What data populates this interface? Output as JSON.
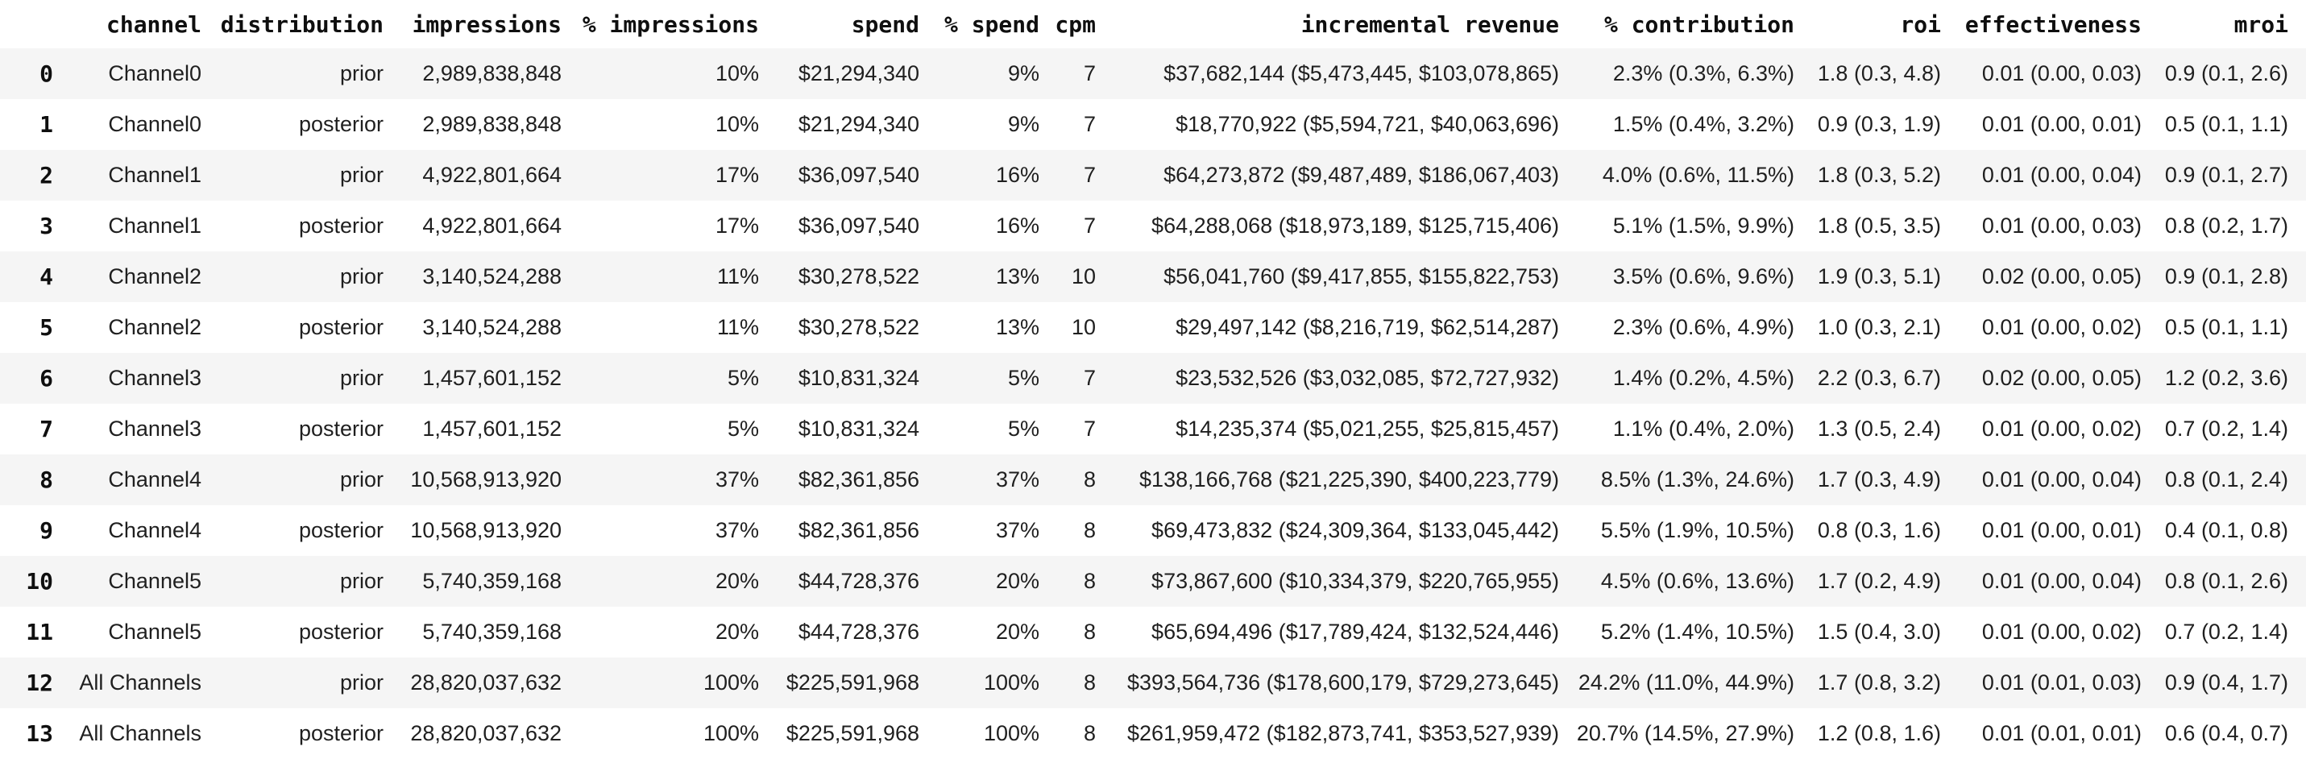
{
  "page": {
    "background": "#ffffff"
  },
  "colors": {
    "stripe": "#f5f5f5",
    "text": "#1f1f1f",
    "header_text": "#0f0f0f"
  },
  "table": {
    "index_header": "",
    "columns": [
      "channel",
      "distribution",
      "impressions",
      "% impressions",
      "spend",
      "% spend",
      "cpm",
      "incremental revenue",
      "% contribution",
      "roi",
      "effectiveness",
      "mroi"
    ],
    "column_keys": [
      "channel",
      "distribution",
      "impressions",
      "pct-impressions",
      "spend",
      "pct-spend",
      "cpm",
      "incremental-revenue",
      "pct-contribution",
      "roi",
      "effectiveness",
      "mroi"
    ],
    "rows": [
      {
        "index": "0",
        "cells": [
          "Channel0",
          "prior",
          "2,989,838,848",
          "10%",
          "$21,294,340",
          "9%",
          "7",
          "$37,682,144 ($5,473,445, $103,078,865)",
          "2.3% (0.3%, 6.3%)",
          "1.8 (0.3, 4.8)",
          "0.01 (0.00, 0.03)",
          "0.9 (0.1, 2.6)"
        ]
      },
      {
        "index": "1",
        "cells": [
          "Channel0",
          "posterior",
          "2,989,838,848",
          "10%",
          "$21,294,340",
          "9%",
          "7",
          "$18,770,922 ($5,594,721, $40,063,696)",
          "1.5% (0.4%, 3.2%)",
          "0.9 (0.3, 1.9)",
          "0.01 (0.00, 0.01)",
          "0.5 (0.1, 1.1)"
        ]
      },
      {
        "index": "2",
        "cells": [
          "Channel1",
          "prior",
          "4,922,801,664",
          "17%",
          "$36,097,540",
          "16%",
          "7",
          "$64,273,872 ($9,487,489, $186,067,403)",
          "4.0% (0.6%, 11.5%)",
          "1.8 (0.3, 5.2)",
          "0.01 (0.00, 0.04)",
          "0.9 (0.1, 2.7)"
        ]
      },
      {
        "index": "3",
        "cells": [
          "Channel1",
          "posterior",
          "4,922,801,664",
          "17%",
          "$36,097,540",
          "16%",
          "7",
          "$64,288,068 ($18,973,189, $125,715,406)",
          "5.1% (1.5%, 9.9%)",
          "1.8 (0.5, 3.5)",
          "0.01 (0.00, 0.03)",
          "0.8 (0.2, 1.7)"
        ]
      },
      {
        "index": "4",
        "cells": [
          "Channel2",
          "prior",
          "3,140,524,288",
          "11%",
          "$30,278,522",
          "13%",
          "10",
          "$56,041,760 ($9,417,855, $155,822,753)",
          "3.5% (0.6%, 9.6%)",
          "1.9 (0.3, 5.1)",
          "0.02 (0.00, 0.05)",
          "0.9 (0.1, 2.8)"
        ]
      },
      {
        "index": "5",
        "cells": [
          "Channel2",
          "posterior",
          "3,140,524,288",
          "11%",
          "$30,278,522",
          "13%",
          "10",
          "$29,497,142 ($8,216,719, $62,514,287)",
          "2.3% (0.6%, 4.9%)",
          "1.0 (0.3, 2.1)",
          "0.01 (0.00, 0.02)",
          "0.5 (0.1, 1.1)"
        ]
      },
      {
        "index": "6",
        "cells": [
          "Channel3",
          "prior",
          "1,457,601,152",
          "5%",
          "$10,831,324",
          "5%",
          "7",
          "$23,532,526 ($3,032,085, $72,727,932)",
          "1.4% (0.2%, 4.5%)",
          "2.2 (0.3, 6.7)",
          "0.02 (0.00, 0.05)",
          "1.2 (0.2, 3.6)"
        ]
      },
      {
        "index": "7",
        "cells": [
          "Channel3",
          "posterior",
          "1,457,601,152",
          "5%",
          "$10,831,324",
          "5%",
          "7",
          "$14,235,374 ($5,021,255, $25,815,457)",
          "1.1% (0.4%, 2.0%)",
          "1.3 (0.5, 2.4)",
          "0.01 (0.00, 0.02)",
          "0.7 (0.2, 1.4)"
        ]
      },
      {
        "index": "8",
        "cells": [
          "Channel4",
          "prior",
          "10,568,913,920",
          "37%",
          "$82,361,856",
          "37%",
          "8",
          "$138,166,768 ($21,225,390, $400,223,779)",
          "8.5% (1.3%, 24.6%)",
          "1.7 (0.3, 4.9)",
          "0.01 (0.00, 0.04)",
          "0.8 (0.1, 2.4)"
        ]
      },
      {
        "index": "9",
        "cells": [
          "Channel4",
          "posterior",
          "10,568,913,920",
          "37%",
          "$82,361,856",
          "37%",
          "8",
          "$69,473,832 ($24,309,364, $133,045,442)",
          "5.5% (1.9%, 10.5%)",
          "0.8 (0.3, 1.6)",
          "0.01 (0.00, 0.01)",
          "0.4 (0.1, 0.8)"
        ]
      },
      {
        "index": "10",
        "cells": [
          "Channel5",
          "prior",
          "5,740,359,168",
          "20%",
          "$44,728,376",
          "20%",
          "8",
          "$73,867,600 ($10,334,379, $220,765,955)",
          "4.5% (0.6%, 13.6%)",
          "1.7 (0.2, 4.9)",
          "0.01 (0.00, 0.04)",
          "0.8 (0.1, 2.6)"
        ]
      },
      {
        "index": "11",
        "cells": [
          "Channel5",
          "posterior",
          "5,740,359,168",
          "20%",
          "$44,728,376",
          "20%",
          "8",
          "$65,694,496 ($17,789,424, $132,524,446)",
          "5.2% (1.4%, 10.5%)",
          "1.5 (0.4, 3.0)",
          "0.01 (0.00, 0.02)",
          "0.7 (0.2, 1.4)"
        ]
      },
      {
        "index": "12",
        "cells": [
          "All Channels",
          "prior",
          "28,820,037,632",
          "100%",
          "$225,591,968",
          "100%",
          "8",
          "$393,564,736 ($178,600,179, $729,273,645)",
          "24.2% (11.0%, 44.9%)",
          "1.7 (0.8, 3.2)",
          "0.01 (0.01, 0.03)",
          "0.9 (0.4, 1.7)"
        ]
      },
      {
        "index": "13",
        "cells": [
          "All Channels",
          "posterior",
          "28,820,037,632",
          "100%",
          "$225,591,968",
          "100%",
          "8",
          "$261,959,472 ($182,873,741, $353,527,939)",
          "20.7% (14.5%, 27.9%)",
          "1.2 (0.8, 1.6)",
          "0.01 (0.01, 0.01)",
          "0.6 (0.4, 0.7)"
        ]
      }
    ]
  }
}
